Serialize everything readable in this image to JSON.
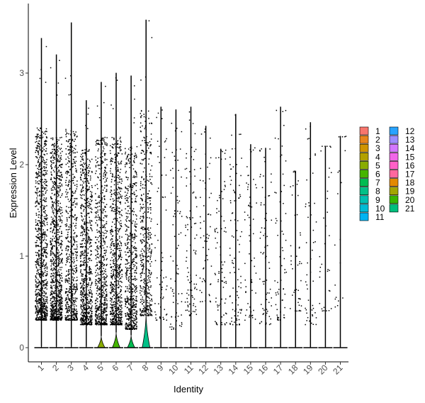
{
  "chart_data": {
    "type": "violin",
    "title": "",
    "xlabel": "Identity",
    "ylabel": "Expression Level",
    "ylim": [
      -0.18,
      3.6
    ],
    "yticks": [
      0,
      1,
      2,
      3
    ],
    "grid": false,
    "legend_position": "right",
    "categories": [
      "1",
      "2",
      "3",
      "4",
      "5",
      "6",
      "7",
      "8",
      "9",
      "10",
      "11",
      "12",
      "13",
      "14",
      "15",
      "16",
      "17",
      "18",
      "19",
      "20",
      "21"
    ],
    "colors": [
      "#F8766D",
      "#E7851E",
      "#D09400",
      "#B2A100",
      "#89AC00",
      "#45B500",
      "#00BC51",
      "#00C087",
      "#00C0B2",
      "#00BCD6",
      "#00B3F2",
      "#29A3FF",
      "#9C8DFF",
      "#D277FF",
      "#F166E8",
      "#FF61C7",
      "#FF689E",
      "#E38900",
      "#A3A500",
      "#39B600",
      "#00BF7D"
    ],
    "max_values": [
      3.38,
      3.2,
      3.55,
      2.7,
      2.9,
      3.0,
      2.97,
      3.58,
      2.63,
      2.6,
      2.63,
      2.42,
      2.17,
      2.55,
      2.22,
      2.18,
      2.63,
      1.93,
      2.46,
      2.2,
      2.31
    ],
    "density_heights": [
      0.02,
      0.02,
      0.02,
      0.02,
      0.13,
      0.17,
      0.14,
      0.38,
      0.01,
      0.01,
      0.01,
      0.01,
      0.01,
      0.01,
      0.01,
      0.01,
      0.01,
      0.01,
      0.01,
      0.01,
      0.01
    ],
    "violin_widths": [
      0.04,
      0.04,
      0.04,
      0.04,
      0.5,
      0.52,
      0.5,
      0.52,
      0.02,
      0.02,
      0.02,
      0.02,
      0.02,
      0.02,
      0.02,
      0.02,
      0.02,
      0.02,
      0.02,
      0.02,
      0.02
    ],
    "point_counts": [
      900,
      900,
      600,
      700,
      650,
      700,
      600,
      450,
      60,
      70,
      90,
      55,
      75,
      90,
      55,
      70,
      60,
      40,
      45,
      30,
      15
    ],
    "point_ranges": [
      [
        0.3,
        2.4
      ],
      [
        0.3,
        2.3
      ],
      [
        0.3,
        2.4
      ],
      [
        0.25,
        2.2
      ],
      [
        0.25,
        2.3
      ],
      [
        0.25,
        2.3
      ],
      [
        0.2,
        2.2
      ],
      [
        0.35,
        2.6
      ],
      [
        0.3,
        2.3
      ],
      [
        0.2,
        2.2
      ],
      [
        0.35,
        2.2
      ],
      [
        0.5,
        2.2
      ],
      [
        0.25,
        2.1
      ],
      [
        0.25,
        2.2
      ],
      [
        0.3,
        2.0
      ],
      [
        0.25,
        2.1
      ],
      [
        0.3,
        2.3
      ],
      [
        0.4,
        1.9
      ],
      [
        0.25,
        2.2
      ],
      [
        0.4,
        2.2
      ],
      [
        0.4,
        2.3
      ]
    ],
    "legend": {
      "items": [
        "1",
        "2",
        "3",
        "4",
        "5",
        "6",
        "7",
        "8",
        "9",
        "10",
        "11",
        "12",
        "13",
        "14",
        "15",
        "16",
        "17",
        "18",
        "19",
        "20",
        "21"
      ]
    }
  }
}
